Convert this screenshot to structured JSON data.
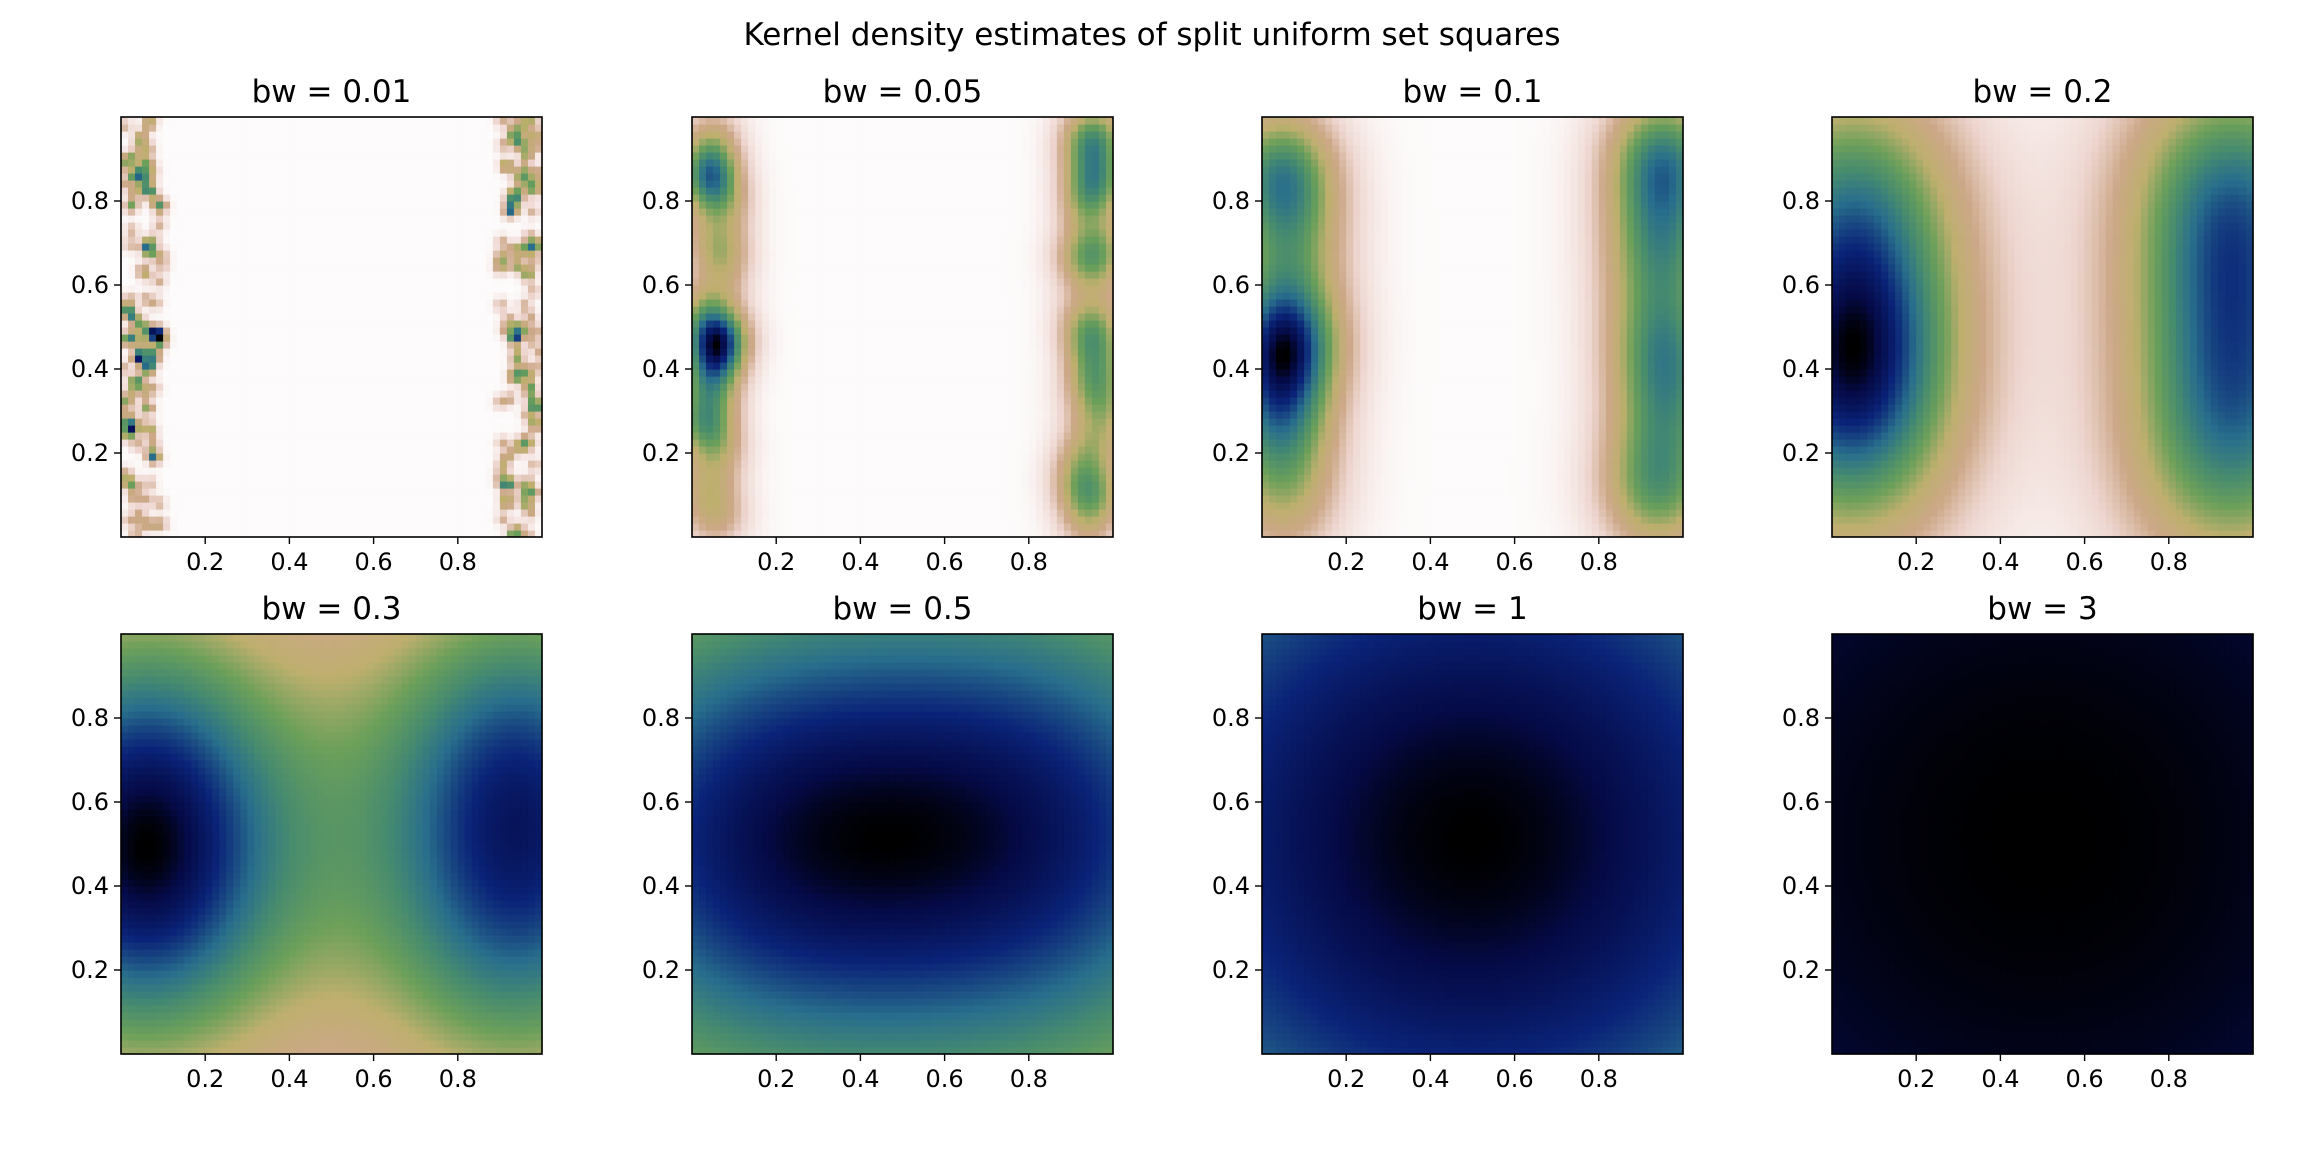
{
  "chart_data": {
    "type": "heatmap",
    "title": "Kernel density estimates of split uniform set squares",
    "colormap": "gist_earth_r",
    "xlim": [
      0,
      1
    ],
    "ylim": [
      0,
      1
    ],
    "xticks": [
      "0.2",
      "0.4",
      "0.6",
      "0.8"
    ],
    "yticks": [
      "0.2",
      "0.4",
      "0.6",
      "0.8"
    ],
    "grid": false,
    "panels": [
      {
        "title": "bw = 0.01",
        "bw": 0.01
      },
      {
        "title": "bw = 0.05",
        "bw": 0.05
      },
      {
        "title": "bw = 0.1",
        "bw": 0.1
      },
      {
        "title": "bw = 0.2",
        "bw": 0.2
      },
      {
        "title": "bw = 0.3",
        "bw": 0.3
      },
      {
        "title": "bw = 0.5",
        "bw": 0.5
      },
      {
        "title": "bw = 1",
        "bw": 1
      },
      {
        "title": "bw = 3",
        "bw": 3
      }
    ]
  }
}
